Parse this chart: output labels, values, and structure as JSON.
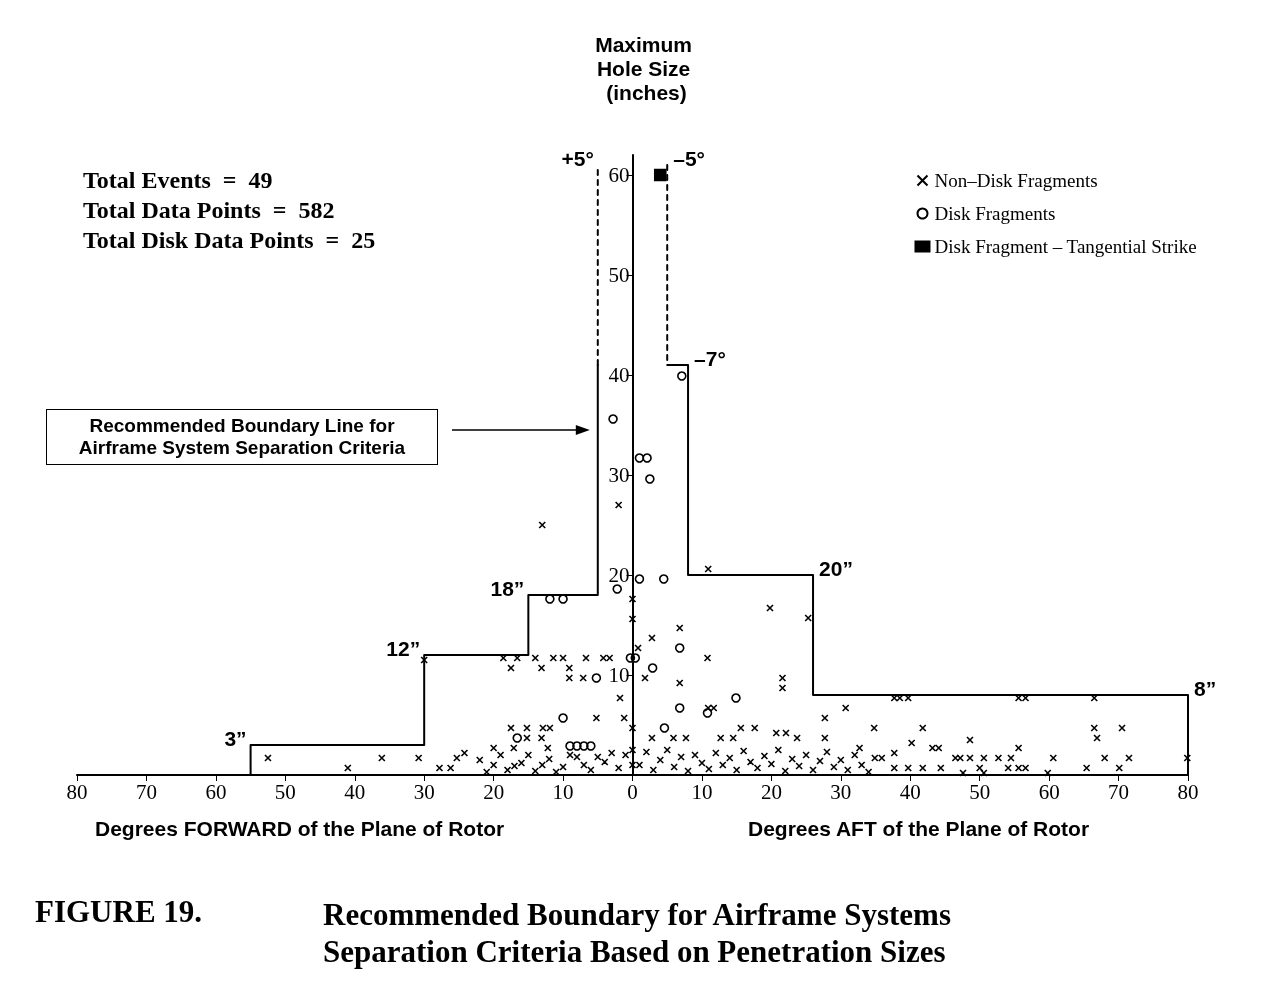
{
  "chart_data": {
    "type": "scatter",
    "title": "FIGURE 19.",
    "subtitle": "Recommended Boundary for Airframe Systems Separation Criteria Based on Penetration Sizes",
    "xlabel": "Degrees FORWARD of the Plane of Rotor",
    "ylabel": "Maximum Hole Size (inches)",
    "xlim": [
      -80,
      80
    ],
    "xticks": [
      {
        "value": -80,
        "label": "80"
      },
      {
        "value": -70,
        "label": "70"
      },
      {
        "value": -60,
        "label": "60"
      },
      {
        "value": -50,
        "label": "50"
      },
      {
        "value": -40,
        "label": "40"
      },
      {
        "value": -30,
        "label": "30"
      },
      {
        "value": -20,
        "label": "20"
      },
      {
        "value": -10,
        "label": "10"
      },
      0,
      10,
      20,
      30,
      40,
      50,
      60,
      70,
      80
    ],
    "ylim": [
      0,
      62
    ],
    "yticks": [
      10,
      20,
      30,
      40,
      50,
      60
    ],
    "legend": "top right",
    "annotations": [
      "Total Events  =  49",
      "Total Data Points  =  582",
      "Total Disk Data Points  =  25",
      "Degrees AFT of the Plane of Rotor",
      "Recommended Boundary Line for Airframe System Separation Criteria",
      {
        "text": "+5°",
        "x": -5,
        "y": 61
      },
      {
        "text": "–5°",
        "x": 5,
        "y": 61
      },
      {
        "text": "–7°",
        "x": 8,
        "y": 41
      },
      {
        "text": "3”",
        "x": -55,
        "y": 3
      },
      {
        "text": "12”",
        "x": -30,
        "y": 12
      },
      {
        "text": "18”",
        "x": -15,
        "y": 18
      },
      {
        "text": "20”",
        "x": 26,
        "y": 20
      },
      {
        "text": "8”",
        "x": 80,
        "y": 8
      }
    ],
    "series": [
      {
        "type": "line",
        "color": "#000000",
        "line_style": "solid",
        "marker": "none",
        "x": [
          -55,
          -55,
          -30,
          -30,
          -15,
          -15,
          -5,
          -5
        ],
        "values": [
          0,
          3,
          3,
          12,
          12,
          18,
          18,
          41
        ]
      },
      {
        "type": "line",
        "color": "#000000",
        "line_style": "solid",
        "marker": "none",
        "x": [
          5,
          8,
          8,
          26,
          26,
          80,
          80
        ],
        "values": [
          41,
          41,
          20,
          20,
          8,
          8,
          0
        ]
      },
      {
        "type": "line",
        "color": "#000000",
        "line_style": "dashed",
        "marker": "none",
        "x": [
          -5,
          -5
        ],
        "values": [
          41,
          61
        ]
      },
      {
        "type": "line",
        "color": "#000000",
        "line_style": "dashed",
        "marker": "none",
        "x": [
          5,
          5
        ],
        "values": [
          61,
          41
        ]
      },
      {
        "name": "Non–Disk Fragments",
        "type": "scatter",
        "color": "#000000",
        "marker": "cross",
        "x": [
          -13,
          -2,
          -30,
          -18.6,
          -16.6,
          -14,
          -11.4,
          -10,
          -6.7,
          -4.2,
          -3.3,
          -17.5,
          -13.1,
          -9.1,
          -9.1,
          -7.1,
          -1.8,
          -5.2,
          -1.2,
          -17.5,
          -15.2,
          -12.9,
          -11.9,
          -15.2,
          -13.1,
          -52.5,
          -41,
          -36.1,
          -30.8,
          -27.8,
          -26.2,
          -25.3,
          -24.2,
          -20,
          -17.1,
          -12.2,
          -22,
          -21,
          -20,
          -19,
          -18,
          -17,
          -16,
          -15,
          -14,
          -13,
          -12,
          -11,
          -10,
          -9,
          -8,
          -7,
          -6,
          -5,
          -4,
          -3,
          -2,
          -1,
          0,
          0,
          0,
          0,
          0,
          0.8,
          2.8,
          1.8,
          6.8,
          6.8,
          10.8,
          10.9,
          19.8,
          25.3,
          21.6,
          21.6,
          10.9,
          11.7,
          15.6,
          17.6,
          20.7,
          22.1,
          23.7,
          27.7,
          27.7,
          2.8,
          5.9,
          7.7,
          12.7,
          14.5,
          1,
          2,
          3,
          4,
          5,
          6,
          7,
          8,
          9,
          10,
          11,
          12,
          13,
          14,
          15,
          16,
          17,
          18,
          19,
          20,
          21,
          22,
          23,
          24,
          25,
          26,
          27,
          28,
          29,
          37.7,
          38.5,
          39.7,
          55.6,
          56.6,
          66.5,
          30.7,
          34.8,
          41.8,
          66.5,
          70.5,
          66.9,
          40.2,
          32.7,
          43.2,
          44.1,
          48.6,
          55.6,
          37.7,
          34.9,
          35.9,
          46.5,
          47.2,
          48.6,
          50.6,
          52.7,
          54.5,
          60.6,
          68,
          71.5,
          79.9,
          37.7,
          39.7,
          41.8,
          44.4,
          50,
          54.1,
          55.6,
          56.6,
          65.4,
          70.1,
          47.6,
          50.6,
          59.8,
          30,
          31,
          32,
          33,
          34
        ],
        "values": [
          25,
          27,
          11.5,
          11.7,
          11.7,
          11.7,
          11.7,
          11.7,
          11.7,
          11.7,
          11.7,
          10.7,
          10.7,
          10.7,
          9.7,
          9.7,
          7.7,
          5.7,
          5.7,
          4.7,
          4.7,
          4.7,
          4.7,
          3.7,
          3.7,
          1.7,
          0.7,
          1.7,
          1.7,
          0.7,
          0.7,
          1.7,
          2.2,
          2.7,
          2.7,
          2.7,
          1.5,
          0.3,
          1,
          2,
          0.5,
          0.9,
          1.2,
          2,
          0.4,
          1,
          1.6,
          0.3,
          0.8,
          2,
          1.8,
          1,
          0.5,
          1.8,
          1.3,
          2.2,
          0.7,
          2,
          17.6,
          15.6,
          4.7,
          2.5,
          1,
          12.7,
          13.7,
          9.7,
          14.7,
          9.2,
          11.7,
          20.6,
          16.7,
          15.7,
          9.7,
          8.7,
          6.7,
          6.7,
          4.7,
          4.7,
          4.2,
          4.2,
          3.7,
          3.7,
          5.7,
          3.7,
          3.7,
          3.7,
          3.7,
          3.7,
          1,
          2.3,
          0.5,
          1.5,
          2.5,
          0.8,
          1.8,
          0.4,
          2,
          1.2,
          0.6,
          2.2,
          1,
          1.7,
          0.5,
          2.4,
          1.3,
          0.7,
          1.9,
          1.1,
          2.5,
          0.4,
          1.6,
          0.9,
          2,
          0.5,
          1.4,
          2.3,
          0.8,
          7.7,
          7.7,
          7.7,
          7.7,
          7.7,
          7.7,
          6.7,
          4.7,
          4.7,
          4.7,
          4.7,
          3.7,
          3.2,
          2.7,
          2.7,
          2.7,
          3.5,
          2.7,
          2.2,
          1.7,
          1.7,
          1.7,
          1.7,
          1.7,
          1.7,
          1.7,
          1.7,
          1.7,
          1.7,
          1.7,
          1.7,
          0.7,
          0.7,
          0.7,
          0.7,
          0.7,
          0.7,
          0.7,
          0.7,
          0.7,
          0.7,
          0.2,
          0.2,
          0.2,
          1.5,
          0.5,
          2,
          1,
          0.3
        ]
      },
      {
        "name": "Disk Fragments",
        "type": "scatter",
        "color": "#000000",
        "marker": "circle",
        "x": [
          -11.9,
          -10,
          -2.2,
          -0.3,
          0.4,
          -5.2,
          -10,
          -16.6,
          -2.8,
          7.1,
          1,
          2.1,
          2.5,
          1,
          4.5,
          6.8,
          2.9,
          6.8,
          10.8,
          14.9,
          4.6,
          -9,
          -8,
          -7,
          -6
        ],
        "values": [
          17.6,
          17.6,
          18.6,
          11.7,
          11.7,
          9.7,
          5.7,
          3.7,
          35.6,
          39.9,
          31.7,
          31.7,
          29.6,
          19.6,
          19.6,
          12.7,
          10.7,
          6.7,
          6.2,
          7.7,
          4.7,
          2.9,
          2.9,
          2.9,
          2.9
        ]
      },
      {
        "name": "Disk Fragment – Tangential Strike",
        "type": "scatter",
        "color": "#000000",
        "marker": "square",
        "x": [
          4
        ],
        "values": [
          60
        ]
      }
    ]
  }
}
